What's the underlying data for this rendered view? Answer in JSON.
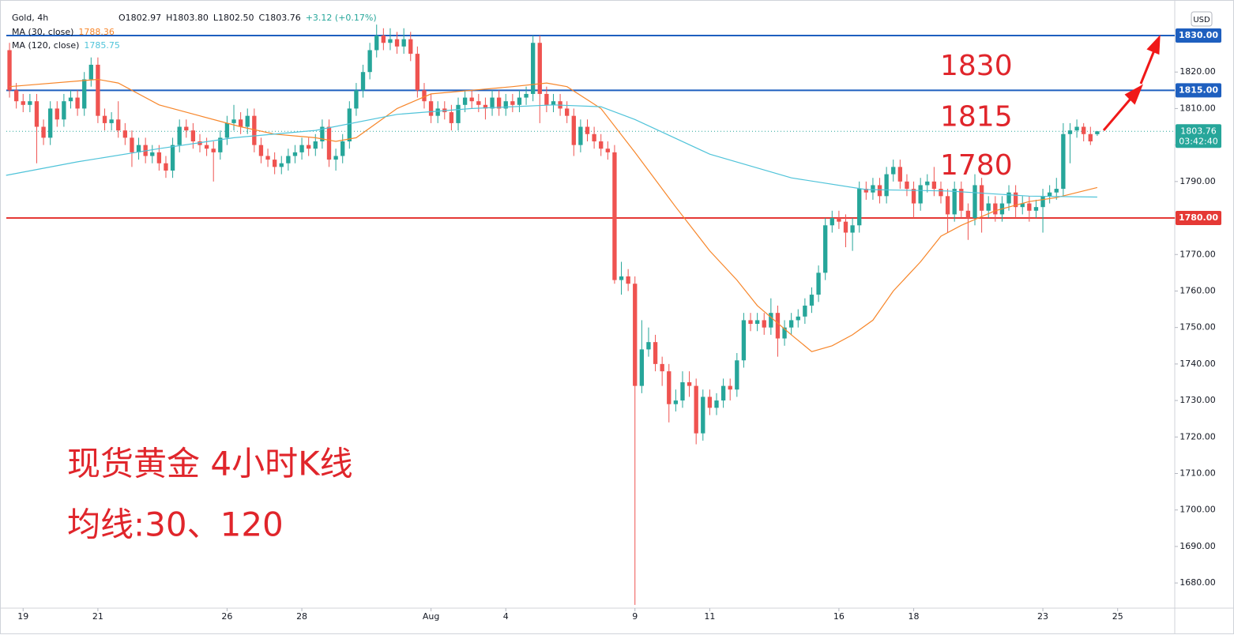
{
  "chart_data": {
    "type": "candlestick",
    "symbol": "Gold, 4h",
    "ohlc_text": [
      "O1802.97",
      "H1803.80",
      "L1802.50",
      "C1803.76",
      "+3.12 (+0.17%)"
    ],
    "currency": "USD",
    "up_color": "#26a69a",
    "down_color": "#ef5350",
    "xlim": [
      -1.4,
      171.4
    ],
    "xticks": [
      {
        "value": 2,
        "label": "19"
      },
      {
        "value": 13,
        "label": "21"
      },
      {
        "value": 32,
        "label": "26"
      },
      {
        "value": 43,
        "label": "28"
      },
      {
        "value": 62,
        "label": "Aug"
      },
      {
        "value": 73,
        "label": "4"
      },
      {
        "value": 92,
        "label": "9"
      },
      {
        "value": 103,
        "label": "11"
      },
      {
        "value": 122,
        "label": "16"
      },
      {
        "value": 133,
        "label": "18"
      },
      {
        "value": 152,
        "label": "23"
      },
      {
        "value": 163,
        "label": "25"
      }
    ],
    "ylim": [
      1673.1,
      1839.74
    ],
    "yticks": [
      {
        "value": 1680,
        "label": "1680.00"
      },
      {
        "value": 1690,
        "label": "1690.00"
      },
      {
        "value": 1700,
        "label": "1700.00"
      },
      {
        "value": 1710,
        "label": "1710.00"
      },
      {
        "value": 1720,
        "label": "1720.00"
      },
      {
        "value": 1730,
        "label": "1730.00"
      },
      {
        "value": 1740,
        "label": "1740.00"
      },
      {
        "value": 1750,
        "label": "1750.00"
      },
      {
        "value": 1760,
        "label": "1760.00"
      },
      {
        "value": 1770,
        "label": "1770.00"
      },
      {
        "value": 1780,
        "label": "1780.00"
      },
      {
        "value": 1790,
        "label": "1790.00"
      },
      {
        "value": 1800,
        "label": "1800.00"
      },
      {
        "value": 1810,
        "label": "1810.00"
      },
      {
        "value": 1820,
        "label": "1820.00"
      }
    ],
    "grid": false,
    "candles": [
      [
        1826,
        1828,
        1813,
        1815
      ],
      [
        1815,
        1817,
        1810,
        1812
      ],
      [
        1812,
        1814,
        1809,
        1811
      ],
      [
        1811,
        1814,
        1809,
        1812
      ],
      [
        1812,
        1814,
        1795,
        1805
      ],
      [
        1805,
        1807,
        1800,
        1802
      ],
      [
        1802,
        1812,
        1800,
        1810
      ],
      [
        1810,
        1812,
        1805,
        1807
      ],
      [
        1807,
        1814,
        1805,
        1812
      ],
      [
        1812,
        1815,
        1810,
        1813
      ],
      [
        1813,
        1815,
        1808,
        1810
      ],
      [
        1810,
        1820,
        1808,
        1818
      ],
      [
        1818,
        1824,
        1816,
        1822
      ],
      [
        1822,
        1824,
        1806,
        1808
      ],
      [
        1808,
        1810,
        1804,
        1806
      ],
      [
        1806,
        1809,
        1804,
        1807
      ],
      [
        1807,
        1812,
        1802,
        1804
      ],
      [
        1804,
        1806,
        1800,
        1802
      ],
      [
        1802,
        1804,
        1794,
        1798
      ],
      [
        1798,
        1802,
        1796,
        1800
      ],
      [
        1800,
        1802,
        1795,
        1797
      ],
      [
        1797,
        1800,
        1795,
        1798
      ],
      [
        1798,
        1800,
        1793,
        1795
      ],
      [
        1795,
        1797,
        1791,
        1793
      ],
      [
        1793,
        1802,
        1791,
        1800
      ],
      [
        1800,
        1807,
        1798,
        1805
      ],
      [
        1805,
        1807,
        1802,
        1804
      ],
      [
        1804,
        1806,
        1799,
        1801
      ],
      [
        1801,
        1803,
        1798,
        1800
      ],
      [
        1800,
        1802,
        1797,
        1799
      ],
      [
        1799,
        1801,
        1790,
        1798
      ],
      [
        1798,
        1804,
        1796,
        1802
      ],
      [
        1802,
        1808,
        1800,
        1806
      ],
      [
        1806,
        1811,
        1804,
        1807
      ],
      [
        1807,
        1809,
        1803,
        1805
      ],
      [
        1805,
        1810,
        1803,
        1808
      ],
      [
        1808,
        1810,
        1798,
        1800
      ],
      [
        1800,
        1802,
        1795,
        1797
      ],
      [
        1797,
        1799,
        1794,
        1796
      ],
      [
        1796,
        1798,
        1792,
        1794
      ],
      [
        1794,
        1797,
        1792,
        1795
      ],
      [
        1795,
        1799,
        1793,
        1797
      ],
      [
        1797,
        1800,
        1795,
        1798
      ],
      [
        1798,
        1802,
        1796,
        1800
      ],
      [
        1800,
        1802,
        1797,
        1799
      ],
      [
        1799,
        1803,
        1797,
        1801
      ],
      [
        1801,
        1807,
        1799,
        1805
      ],
      [
        1805,
        1807,
        1794,
        1796
      ],
      [
        1796,
        1799,
        1793,
        1797
      ],
      [
        1797,
        1803,
        1795,
        1801
      ],
      [
        1801,
        1812,
        1799,
        1810
      ],
      [
        1810,
        1817,
        1808,
        1815
      ],
      [
        1815,
        1822,
        1813,
        1820
      ],
      [
        1820,
        1828,
        1818,
        1826
      ],
      [
        1826,
        1833,
        1824,
        1830
      ],
      [
        1830,
        1832,
        1826,
        1828
      ],
      [
        1828,
        1832,
        1826,
        1829
      ],
      [
        1829,
        1831,
        1825,
        1827
      ],
      [
        1827,
        1832,
        1825,
        1829
      ],
      [
        1829,
        1831,
        1823,
        1825
      ],
      [
        1825,
        1827,
        1813,
        1815
      ],
      [
        1815,
        1817,
        1810,
        1812
      ],
      [
        1812,
        1814,
        1806,
        1808
      ],
      [
        1808,
        1812,
        1806,
        1810
      ],
      [
        1810,
        1812,
        1807,
        1809
      ],
      [
        1809,
        1811,
        1804,
        1806
      ],
      [
        1806,
        1813,
        1804,
        1811
      ],
      [
        1811,
        1815,
        1809,
        1813
      ],
      [
        1813,
        1815,
        1810,
        1812
      ],
      [
        1812,
        1814,
        1809,
        1811
      ],
      [
        1811,
        1813,
        1807,
        1810
      ],
      [
        1810,
        1815,
        1808,
        1813
      ],
      [
        1813,
        1815,
        1808,
        1810
      ],
      [
        1810,
        1814,
        1808,
        1812
      ],
      [
        1812,
        1814,
        1809,
        1811
      ],
      [
        1811,
        1815,
        1809,
        1813
      ],
      [
        1813,
        1816,
        1811,
        1814
      ],
      [
        1814,
        1830,
        1812,
        1828
      ],
      [
        1828,
        1830,
        1806,
        1814
      ],
      [
        1814,
        1816,
        1809,
        1811
      ],
      [
        1811,
        1814,
        1809,
        1812
      ],
      [
        1812,
        1814,
        1808,
        1810
      ],
      [
        1810,
        1812,
        1806,
        1808
      ],
      [
        1808,
        1810,
        1797,
        1800
      ],
      [
        1800,
        1807,
        1798,
        1805
      ],
      [
        1805,
        1807,
        1801,
        1803
      ],
      [
        1803,
        1805,
        1799,
        1801
      ],
      [
        1801,
        1803,
        1797,
        1799
      ],
      [
        1799,
        1801,
        1796,
        1798
      ],
      [
        1798,
        1800,
        1762,
        1763
      ],
      [
        1763,
        1768,
        1759,
        1764
      ],
      [
        1764,
        1766,
        1760,
        1762
      ],
      [
        1762,
        1764,
        1674,
        1734
      ],
      [
        1734,
        1752,
        1732,
        1744
      ],
      [
        1744,
        1750,
        1742,
        1746
      ],
      [
        1746,
        1748,
        1738,
        1740
      ],
      [
        1740,
        1742,
        1734,
        1738
      ],
      [
        1738,
        1740,
        1724,
        1729
      ],
      [
        1729,
        1733,
        1727,
        1730
      ],
      [
        1730,
        1738,
        1728,
        1735
      ],
      [
        1735,
        1738,
        1731,
        1734
      ],
      [
        1734,
        1736,
        1718,
        1721
      ],
      [
        1721,
        1733,
        1719,
        1731
      ],
      [
        1731,
        1733,
        1726,
        1728
      ],
      [
        1728,
        1732,
        1726,
        1730
      ],
      [
        1730,
        1736,
        1728,
        1734
      ],
      [
        1734,
        1736,
        1730,
        1733
      ],
      [
        1733,
        1743,
        1731,
        1741
      ],
      [
        1741,
        1754,
        1739,
        1752
      ],
      [
        1752,
        1754,
        1749,
        1751
      ],
      [
        1751,
        1754,
        1749,
        1752
      ],
      [
        1752,
        1754,
        1748,
        1750
      ],
      [
        1750,
        1758,
        1748,
        1754
      ],
      [
        1754,
        1756,
        1742,
        1747
      ],
      [
        1747,
        1752,
        1745,
        1750
      ],
      [
        1750,
        1754,
        1748,
        1752
      ],
      [
        1752,
        1755,
        1750,
        1753
      ],
      [
        1753,
        1758,
        1751,
        1756
      ],
      [
        1756,
        1761,
        1754,
        1759
      ],
      [
        1759,
        1767,
        1757,
        1765
      ],
      [
        1765,
        1780,
        1763,
        1778
      ],
      [
        1778,
        1782,
        1776,
        1780
      ],
      [
        1780,
        1782,
        1777,
        1779
      ],
      [
        1779,
        1781,
        1772,
        1776
      ],
      [
        1776,
        1780,
        1771,
        1778
      ],
      [
        1778,
        1790,
        1776,
        1788
      ],
      [
        1788,
        1790,
        1785,
        1787
      ],
      [
        1787,
        1791,
        1785,
        1789
      ],
      [
        1789,
        1791,
        1784,
        1786
      ],
      [
        1786,
        1794,
        1784,
        1792
      ],
      [
        1792,
        1796,
        1790,
        1794
      ],
      [
        1794,
        1796,
        1788,
        1790
      ],
      [
        1790,
        1792,
        1786,
        1788
      ],
      [
        1788,
        1790,
        1780,
        1784
      ],
      [
        1784,
        1791,
        1782,
        1789
      ],
      [
        1789,
        1792,
        1787,
        1790
      ],
      [
        1790,
        1794,
        1786,
        1788
      ],
      [
        1788,
        1790,
        1784,
        1786
      ],
      [
        1786,
        1788,
        1776,
        1781
      ],
      [
        1781,
        1790,
        1779,
        1788
      ],
      [
        1788,
        1790,
        1780,
        1782
      ],
      [
        1782,
        1784,
        1774,
        1780
      ],
      [
        1780,
        1792,
        1778,
        1789
      ],
      [
        1789,
        1791,
        1776,
        1782
      ],
      [
        1782,
        1786,
        1780,
        1784
      ],
      [
        1784,
        1786,
        1779,
        1781
      ],
      [
        1781,
        1786,
        1779,
        1784
      ],
      [
        1784,
        1789,
        1782,
        1787
      ],
      [
        1787,
        1789,
        1780,
        1783
      ],
      [
        1783,
        1786,
        1781,
        1784
      ],
      [
        1784,
        1786,
        1779,
        1782
      ],
      [
        1782,
        1785,
        1780,
        1783
      ],
      [
        1783,
        1788,
        1776,
        1786
      ],
      [
        1786,
        1789,
        1784,
        1787
      ],
      [
        1787,
        1791,
        1785,
        1788
      ],
      [
        1788,
        1806,
        1786,
        1803
      ],
      [
        1803,
        1806,
        1795,
        1804
      ],
      [
        1804,
        1807,
        1802,
        1805
      ],
      [
        1805,
        1806,
        1801,
        1803
      ],
      [
        1803,
        1805,
        1800,
        1801
      ],
      [
        1802.97,
        1803.8,
        1802.5,
        1803.76
      ]
    ],
    "series": [
      {
        "name": "MA (30, close)",
        "value_label": "1788.36",
        "color": "#f7862a",
        "x": [
          0,
          13,
          16,
          22,
          28,
          34,
          39,
          45,
          48,
          51,
          57,
          62,
          68,
          74,
          79,
          82,
          87,
          92,
          98,
          103,
          107,
          110,
          115,
          118,
          121,
          124,
          127,
          130,
          134,
          137,
          140,
          145,
          150,
          154,
          160
        ],
        "values": [
          1816,
          1818,
          1817,
          1811,
          1808,
          1805,
          1803,
          1802,
          1801,
          1802,
          1810,
          1814,
          1815,
          1816,
          1817,
          1816,
          1810,
          1798,
          1783,
          1771,
          1763,
          1756,
          1748,
          1743.4,
          1745,
          1748,
          1752,
          1760,
          1768,
          1775,
          1778,
          1782,
          1784.5,
          1785.6,
          1788.36
        ]
      },
      {
        "name": "MA (120, close)",
        "value_label": "1785.75",
        "color": "#4fc3d9",
        "x": [
          -0.5,
          10,
          22,
          33,
          45,
          57,
          68,
          80,
          87,
          92,
          103,
          115,
          126,
          138,
          150,
          160
        ],
        "values": [
          1791.7,
          1795.4,
          1799,
          1802,
          1804,
          1808.4,
          1810,
          1811,
          1810.5,
          1807,
          1797.5,
          1791,
          1787.8,
          1787.4,
          1786,
          1785.75
        ]
      }
    ],
    "horizontal_lines": [
      {
        "value": 1830,
        "label": "1830.00",
        "color": "#1e5fbf"
      },
      {
        "value": 1815,
        "label": "1815.00",
        "color": "#1e5fbf"
      },
      {
        "value": 1780,
        "label": "1780.00",
        "color": "#e53935"
      }
    ],
    "last_price": {
      "value": 1803.76,
      "label": "1803.76",
      "countdown": "03:42:40"
    },
    "annotations": [
      {
        "text": "1830",
        "price": 1830
      },
      {
        "text": "1815",
        "price": 1815
      },
      {
        "text": "1780",
        "price": 1780
      }
    ],
    "caption": [
      "现货黄金 4小时K线",
      "均线:30、120"
    ]
  }
}
